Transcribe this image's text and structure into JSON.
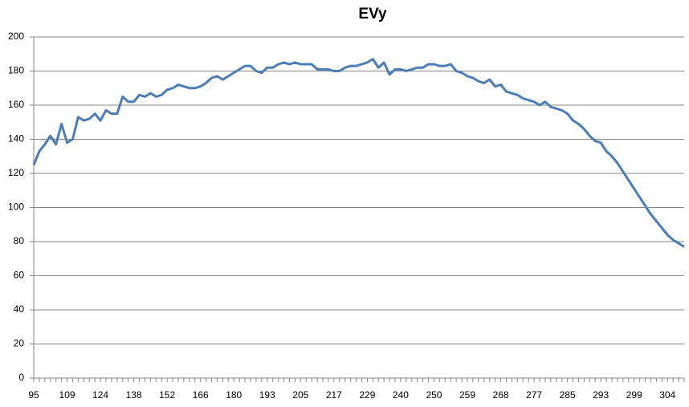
{
  "chart_data": {
    "type": "line",
    "title": "EVy",
    "categories": [
      95,
      null,
      null,
      null,
      null,
      null,
      109,
      null,
      null,
      null,
      null,
      null,
      124,
      null,
      null,
      null,
      null,
      null,
      138,
      null,
      null,
      null,
      null,
      null,
      152,
      null,
      null,
      null,
      null,
      null,
      166,
      null,
      null,
      null,
      null,
      null,
      180,
      null,
      null,
      null,
      null,
      null,
      193,
      null,
      null,
      null,
      null,
      null,
      205,
      null,
      null,
      null,
      null,
      null,
      217,
      null,
      null,
      null,
      null,
      null,
      229,
      null,
      null,
      null,
      null,
      null,
      240,
      null,
      null,
      null,
      null,
      null,
      250,
      null,
      null,
      null,
      null,
      null,
      259,
      null,
      null,
      null,
      null,
      null,
      268,
      null,
      null,
      null,
      null,
      null,
      277,
      null,
      null,
      null,
      null,
      null,
      285,
      null,
      null,
      null,
      null,
      null,
      293,
      null,
      null,
      null,
      null,
      null,
      299,
      null,
      null,
      null,
      null,
      null,
      304,
      null,
      null,
      null
    ],
    "values": [
      125,
      133,
      137,
      142,
      137,
      149,
      138,
      140,
      153,
      151,
      152,
      155,
      151,
      157,
      155,
      155,
      165,
      162,
      162,
      166,
      165,
      167,
      165,
      166,
      169,
      170,
      172,
      171,
      170,
      170,
      171,
      173,
      176,
      177,
      175,
      177,
      179,
      181,
      183,
      183,
      180,
      179,
      182,
      182,
      184,
      185,
      184,
      185,
      184,
      184,
      184,
      181,
      181,
      181,
      180,
      180,
      182,
      183,
      183,
      184,
      185,
      187,
      182,
      185,
      178,
      181,
      181,
      180,
      181,
      182,
      182,
      184,
      184,
      183,
      183,
      184,
      180,
      179,
      177,
      176,
      174,
      173,
      175,
      171,
      172,
      168,
      167,
      166,
      164,
      163,
      162,
      160,
      162,
      159,
      158,
      157,
      155,
      151,
      149,
      146,
      142,
      139,
      138,
      133,
      130,
      126,
      121,
      116,
      111,
      106,
      101,
      96,
      92,
      88,
      84,
      81,
      79,
      77
    ],
    "color": "#4a7ebb",
    "ylim": [
      0,
      200
    ],
    "yticks": [
      0,
      20,
      40,
      60,
      80,
      100,
      120,
      140,
      160,
      180,
      200
    ],
    "grid": true
  }
}
